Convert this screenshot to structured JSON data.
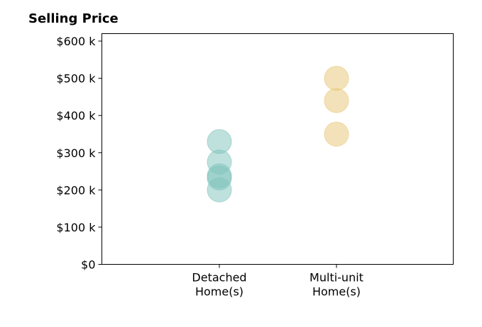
{
  "chart_data": {
    "type": "scatter",
    "title": "Selling Price",
    "xlabel": "",
    "ylabel": "",
    "categories": [
      {
        "label_lines": [
          "Detached",
          "Home(s)"
        ],
        "color": "#7fc4bc"
      },
      {
        "label_lines": [
          "Multi-unit",
          "Home(s)"
        ],
        "color": "#e8c674"
      }
    ],
    "points": [
      {
        "category": 0,
        "value": 330000
      },
      {
        "category": 0,
        "value": 275000
      },
      {
        "category": 0,
        "value": 238000
      },
      {
        "category": 0,
        "value": 232000
      },
      {
        "category": 0,
        "value": 200000
      },
      {
        "category": 1,
        "value": 500000
      },
      {
        "category": 1,
        "value": 440000
      },
      {
        "category": 1,
        "value": 350000
      }
    ],
    "ylim": [
      0,
      620000
    ],
    "yticks": [
      0,
      100000,
      200000,
      300000,
      400000,
      500000,
      600000
    ],
    "ytick_labels": [
      "$0",
      "$100 k",
      "$200 k",
      "$300 k",
      "$400 k",
      "$500 k",
      "$600 k"
    ],
    "grid": false
  }
}
